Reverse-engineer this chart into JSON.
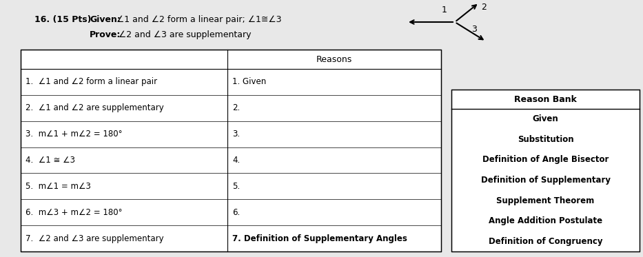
{
  "bg_color": "#c8c8c8",
  "paper_color": "#e8e8e8",
  "header_num": "16. (15 Pts)",
  "given_label": "Given:",
  "given_rest": " ∠1 and ∠2 form a linear pair; ∠1≅∠3",
  "prove_label": "Prove:",
  "prove_rest": " ∠2 and ∠3 are supplementary",
  "table_header_reasons": "Reasons",
  "statements": [
    "1.  ∠1 and ∠2 form a linear pair",
    "2.  ∠1 and ∠2 are supplementary",
    "3.  m∠1 + m∠2 = 180°",
    "4.  ∠1 ≅ ∠3",
    "5.  m∠1 = m∠3",
    "6.  m∠3 + m∠2 = 180°",
    "7.  ∠2 and ∠3 are supplementary"
  ],
  "reasons": [
    "1. Given",
    "2.",
    "3.",
    "4.",
    "5.",
    "6.",
    "7. Definition of Supplementary Angles"
  ],
  "reason_bank_title": "Reason Bank",
  "reason_bank_items": [
    "Given",
    "Substitution",
    "Definition of Angle Bisector",
    "Definition of Supplementary",
    "Supplement Theorem",
    "Angle Addition Postulate",
    "Definition of Congruency"
  ]
}
